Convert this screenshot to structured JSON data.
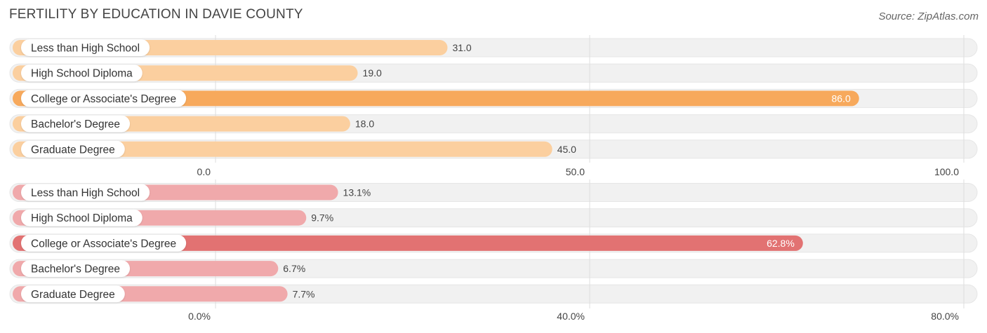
{
  "title": "FERTILITY BY EDUCATION IN DAVIE COUNTY",
  "source": "Source: ZipAtlas.com",
  "colors": {
    "top_light": "#fbcf9f",
    "top_strong": "#f7a95c",
    "bottom_light": "#f0a9ab",
    "bottom_strong": "#e27272",
    "track": "#f1f1f1",
    "grid": "#dddddd"
  },
  "chart_data": [
    {
      "type": "bar",
      "orientation": "horizontal",
      "categories": [
        "Less than High School",
        "High School Diploma",
        "College or Associate's Degree",
        "Bachelor's Degree",
        "Graduate Degree"
      ],
      "values": [
        31.0,
        19.0,
        86.0,
        18.0,
        45.0
      ],
      "value_labels": [
        "31.0",
        "19.0",
        "86.0",
        "18.0",
        "45.0"
      ],
      "xlim": [
        0,
        100
      ],
      "ticks": [
        0,
        50,
        100
      ],
      "tick_labels": [
        "0.0",
        "50.0",
        "100.0"
      ],
      "highlight_index": 2,
      "grid": true
    },
    {
      "type": "bar",
      "orientation": "horizontal",
      "categories": [
        "Less than High School",
        "High School Diploma",
        "College or Associate's Degree",
        "Bachelor's Degree",
        "Graduate Degree"
      ],
      "values": [
        13.1,
        9.7,
        62.8,
        6.7,
        7.7
      ],
      "value_labels": [
        "13.1%",
        "9.7%",
        "62.8%",
        "6.7%",
        "7.7%"
      ],
      "xlim": [
        0,
        80
      ],
      "ticks": [
        0,
        40,
        80
      ],
      "tick_labels": [
        "0.0%",
        "40.0%",
        "80.0%"
      ],
      "highlight_index": 2,
      "grid": true
    }
  ]
}
